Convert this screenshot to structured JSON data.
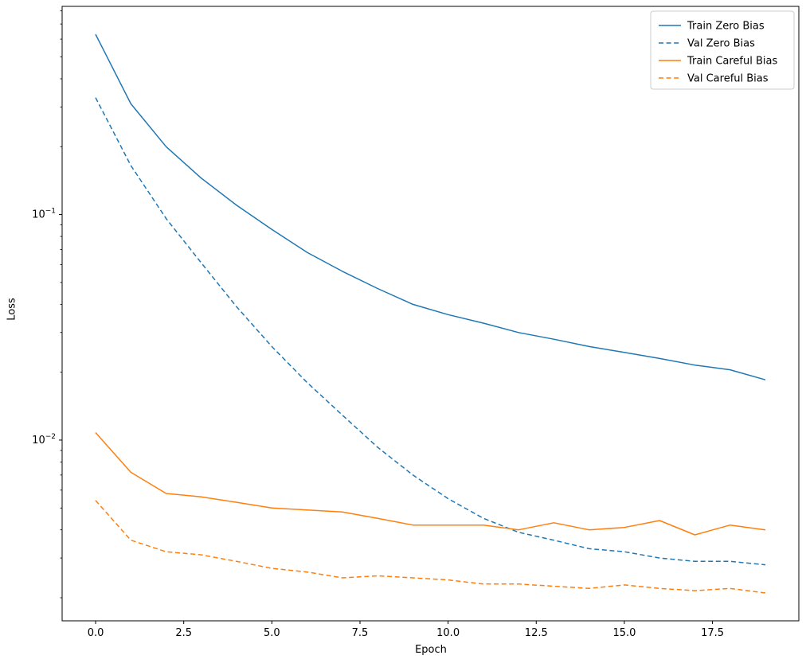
{
  "chart_data": {
    "type": "line",
    "title": "",
    "xlabel": "Epoch",
    "ylabel": "Loss",
    "y_scale": "log",
    "grid": false,
    "legend_position": "upper right",
    "xlim": [
      -0.95,
      19.95
    ],
    "ylim": [
      0.00158,
      0.838
    ],
    "x_ticks": [
      0,
      2.5,
      5,
      7.5,
      10,
      12.5,
      15,
      17.5
    ],
    "x_tick_labels": [
      "0.0",
      "2.5",
      "5.0",
      "7.5",
      "10.0",
      "12.5",
      "15.0",
      "17.5"
    ],
    "y_ticks": [
      {
        "value": 0.1,
        "base": "10",
        "exp": "−1"
      },
      {
        "value": 0.01,
        "base": "10",
        "exp": "−2"
      }
    ],
    "x": [
      0,
      1,
      2,
      3,
      4,
      5,
      6,
      7,
      8,
      9,
      10,
      11,
      12,
      13,
      14,
      15,
      16,
      17,
      18,
      19
    ],
    "series": [
      {
        "name": "Train Zero Bias",
        "color": "#1f77b4",
        "style": "solid",
        "values": [
          0.63,
          0.31,
          0.2,
          0.145,
          0.11,
          0.086,
          0.068,
          0.056,
          0.047,
          0.04,
          0.036,
          0.033,
          0.03,
          0.028,
          0.026,
          0.0245,
          0.023,
          0.0215,
          0.0205,
          0.0185
        ]
      },
      {
        "name": "Val Zero Bias",
        "color": "#1f77b4",
        "style": "dashed",
        "values": [
          0.33,
          0.165,
          0.096,
          0.061,
          0.039,
          0.026,
          0.018,
          0.0129,
          0.0093,
          0.007,
          0.0055,
          0.0045,
          0.0039,
          0.0036,
          0.0033,
          0.0032,
          0.003,
          0.0029,
          0.0029,
          0.0028
        ]
      },
      {
        "name": "Train Careful Bias",
        "color": "#ff7f0e",
        "style": "solid",
        "values": [
          0.0108,
          0.0072,
          0.0058,
          0.0056,
          0.0053,
          0.005,
          0.0049,
          0.0048,
          0.0045,
          0.0042,
          0.0042,
          0.0042,
          0.004,
          0.0043,
          0.004,
          0.0041,
          0.0044,
          0.0038,
          0.0042,
          0.004
        ]
      },
      {
        "name": "Val Careful Bias",
        "color": "#ff7f0e",
        "style": "dashed",
        "values": [
          0.0054,
          0.0036,
          0.0032,
          0.0031,
          0.0029,
          0.0027,
          0.0026,
          0.00245,
          0.0025,
          0.00245,
          0.0024,
          0.0023,
          0.0023,
          0.00225,
          0.0022,
          0.00228,
          0.0022,
          0.00215,
          0.0022,
          0.0021
        ]
      }
    ]
  }
}
